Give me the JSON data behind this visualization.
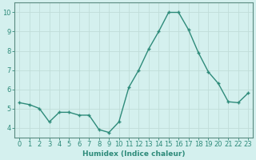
{
  "x": [
    0,
    1,
    2,
    3,
    4,
    5,
    6,
    7,
    8,
    9,
    10,
    11,
    12,
    13,
    14,
    15,
    16,
    17,
    18,
    19,
    20,
    21,
    22,
    23
  ],
  "y": [
    5.3,
    5.2,
    5.0,
    4.3,
    4.8,
    4.8,
    4.65,
    4.65,
    3.9,
    3.75,
    4.3,
    6.1,
    7.0,
    8.1,
    9.0,
    10.0,
    10.0,
    9.1,
    7.9,
    6.9,
    6.3,
    5.35,
    5.3,
    5.8
  ],
  "line_color": "#2e8b7a",
  "marker_color": "#2e8b7a",
  "bg_color": "#d4f0ee",
  "grid_color": "#c0ddd9",
  "xlabel": "Humidex (Indice chaleur)",
  "ylim": [
    3.5,
    10.5
  ],
  "xlim": [
    -0.5,
    23.5
  ],
  "yticks": [
    4,
    5,
    6,
    7,
    8,
    9,
    10
  ],
  "xticks": [
    0,
    1,
    2,
    3,
    4,
    5,
    6,
    7,
    8,
    9,
    10,
    11,
    12,
    13,
    14,
    15,
    16,
    17,
    18,
    19,
    20,
    21,
    22,
    23
  ],
  "xlabel_fontsize": 6.5,
  "tick_fontsize": 6.0,
  "linewidth": 1.0,
  "markersize": 2.8
}
